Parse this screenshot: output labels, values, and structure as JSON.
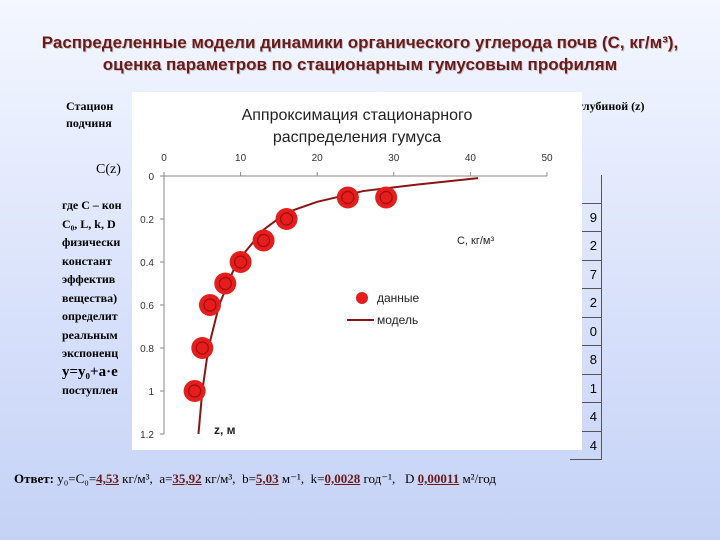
{
  "slide": {
    "title_line1": "Распределенные модели динамики органического углерода почв (С, кг/м³),",
    "title_line2": "оценка параметров по стационарным гумусовым профилям",
    "intro_line1": "Стацион",
    "intro_line1_right": "глубиной (z)",
    "intro_line2": "подчиня",
    "formula": "C(z)",
    "left_lines": [
      "где С – кон",
      "C₀, L, k, D",
      "физически",
      "констант",
      "эффектив",
      "вещества)",
      "определит",
      "реальным",
      "экспоненц"
    ],
    "fit_eq": "y=y₀+a·e",
    "last_line": "поступлен",
    "table_cells": [
      "9",
      "2",
      "7",
      "2",
      "0",
      "8",
      "1",
      "4",
      "4"
    ]
  },
  "chart_data": {
    "type": "scatter",
    "title": "Аппроксимация стационарного распределения гумуса",
    "xlabel": "С, кг/м³",
    "ylabel": "z, м",
    "x_ticks": [
      "0",
      "10",
      "20",
      "30",
      "40",
      "50"
    ],
    "y_ticks": [
      "0",
      "0.2",
      "0.4",
      "0.6",
      "0.8",
      "1",
      "1.2"
    ],
    "xlim": [
      0,
      50
    ],
    "ylim": [
      0,
      1.2
    ],
    "y_inverted": true,
    "legend": [
      "данные",
      "модель"
    ],
    "legend_position": "center-right",
    "series": [
      {
        "name": "данные",
        "points": [
          [
            4,
            1.0
          ],
          [
            5,
            0.8
          ],
          [
            6,
            0.6
          ],
          [
            8,
            0.5
          ],
          [
            10,
            0.4
          ],
          [
            13,
            0.3
          ],
          [
            16,
            0.2
          ],
          [
            24,
            0.1
          ],
          [
            29,
            0.1
          ]
        ]
      },
      {
        "name": "модель",
        "points": [
          [
            4.5,
            1.2
          ],
          [
            5,
            1.0
          ],
          [
            5.8,
            0.8
          ],
          [
            7.2,
            0.6
          ],
          [
            9.5,
            0.4
          ],
          [
            13,
            0.25
          ],
          [
            16,
            0.17
          ],
          [
            20,
            0.12
          ],
          [
            26,
            0.07
          ],
          [
            33,
            0.04
          ],
          [
            41,
            0.01
          ]
        ]
      }
    ]
  },
  "answer": {
    "label": "Ответ:",
    "y0": "y₀=C₀=",
    "y0_value": "4,53",
    "y0_unit": "кг/м³,",
    "a": "a=",
    "a_value": "35,92",
    "a_unit": "кг/м³,",
    "b": "b=",
    "b_value": "5,03",
    "b_unit": "м⁻¹,",
    "k": "k=",
    "k_value": "0,0028",
    "k_unit": "год⁻¹,",
    "d": "D",
    "d_value": "0,00011",
    "d_unit": "м²/год"
  },
  "colors": {
    "marker": "#e51d1d",
    "line": "#8b1515",
    "title": "#6a1a1a"
  }
}
